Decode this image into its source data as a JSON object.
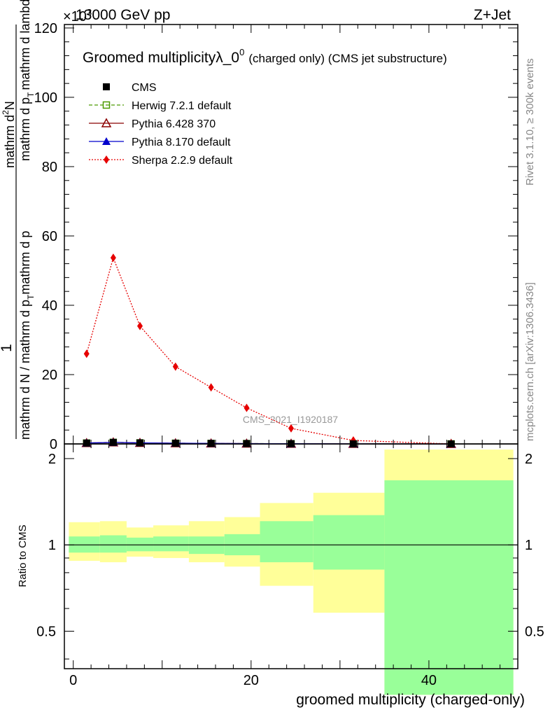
{
  "header": {
    "left": "13000 GeV pp",
    "right": "Z+Jet",
    "exponent": "×10",
    "exponent_power": "3"
  },
  "side_text": {
    "rivet": "Rivet 3.1.10, ≥ 300k events",
    "mcplots": "mcplots.cern.ch [arXiv:1306.3436]"
  },
  "chart_data": [
    {
      "type": "line",
      "title": "Groomed multiplicityλ_0",
      "title_sup": "0",
      "title_suffix": "(charged only) (CMS jet substructure)",
      "ylabel": "1 / (mathrm d N / mathrm d p_T mathrm d p_T mathrm d lambda) · mathrm d²N",
      "ylabel_parts": {
        "numerator_1": "1",
        "denominator_1": "mathrm d N / mathrm d p",
        "denominator_1_sub": "T",
        "denominator_1_b": "mathrm d p",
        "denominator_1_b_sub": "T",
        "numerator_2_a": "mathrm d",
        "numerator_2_sup": "2",
        "numerator_2_b": "N",
        "denominator_2": "mathrm d p",
        "denominator_2_sub": "T",
        "denominator_2_b": "mathrm d lambda"
      },
      "xlim": [
        -1,
        50
      ],
      "ylim": [
        0,
        121
      ],
      "yticks": [
        0,
        20,
        40,
        60,
        80,
        100,
        120
      ],
      "xticks": [
        0,
        20,
        40
      ],
      "watermark": "CMS_2021_I1920187",
      "legend": [
        {
          "name": "CMS",
          "color": "#000000",
          "marker": "square-filled",
          "line": "none"
        },
        {
          "name": "Herwig 7.2.1 default",
          "color": "#4c9a00",
          "marker": "square-open",
          "line": "dashed"
        },
        {
          "name": "Pythia 6.428 370",
          "color": "#8b0000",
          "marker": "triangle-open",
          "line": "solid"
        },
        {
          "name": "Pythia 8.170 default",
          "color": "#0000cc",
          "marker": "triangle-filled",
          "line": "solid"
        },
        {
          "name": "Sherpa 2.2.9 default",
          "color": "#e60000",
          "marker": "diamond-filled",
          "line": "dotted"
        }
      ],
      "bins": [
        {
          "lo": 0,
          "hi": 3,
          "x": 1.5
        },
        {
          "lo": 3,
          "hi": 6,
          "x": 4.5
        },
        {
          "lo": 6,
          "hi": 9,
          "x": 7.5
        },
        {
          "lo": 9,
          "hi": 13,
          "x": 11.5
        },
        {
          "lo": 13,
          "hi": 17,
          "x": 15.5
        },
        {
          "lo": 17,
          "hi": 21,
          "x": 19.5
        },
        {
          "lo": 21,
          "hi": 27,
          "x": 24.5
        },
        {
          "lo": 27,
          "hi": 35,
          "x": 31.5
        },
        {
          "lo": 35,
          "hi": 50,
          "x": 42.5
        }
      ],
      "series": [
        {
          "name": "CMS",
          "values": [
            0.25,
            0.45,
            0.3,
            0.2,
            0.15,
            0.1,
            0.06,
            0.02,
            0.004
          ]
        },
        {
          "name": "Herwig 7.2.1 default",
          "values": [
            0.25,
            0.45,
            0.3,
            0.2,
            0.15,
            0.1,
            0.06,
            0.02,
            0.004
          ]
        },
        {
          "name": "Pythia 6.428 370",
          "values": [
            0.25,
            0.45,
            0.3,
            0.2,
            0.15,
            0.1,
            0.06,
            0.02,
            0.004
          ]
        },
        {
          "name": "Pythia 8.170 default",
          "values": [
            0.25,
            0.45,
            0.3,
            0.2,
            0.15,
            0.1,
            0.06,
            0.02,
            0.004
          ]
        },
        {
          "name": "Sherpa 2.2.9 default",
          "values": [
            26,
            53.7,
            34,
            22.3,
            16.3,
            10.4,
            4.5,
            1,
            0
          ]
        }
      ]
    },
    {
      "type": "area",
      "ylabel": "Ratio to CMS",
      "xlabel": "groomed multiplicity (charged-only)",
      "xlim": [
        -1,
        50
      ],
      "ylim": [
        0.37,
        2.25
      ],
      "yticks": [
        0.5,
        1,
        2
      ],
      "ytick_labels": [
        "0.5",
        "1",
        "2"
      ],
      "xticks": [
        0,
        20,
        40
      ],
      "reference_line": 1,
      "bands": [
        {
          "lo": -0.5,
          "hi": 3,
          "inner": [
            0.94,
            1.07
          ],
          "outer": [
            0.88,
            1.2
          ]
        },
        {
          "lo": 3,
          "hi": 6,
          "inner": [
            0.94,
            1.08
          ],
          "outer": [
            0.87,
            1.21
          ]
        },
        {
          "lo": 6,
          "hi": 9,
          "inner": [
            0.95,
            1.06
          ],
          "outer": [
            0.91,
            1.15
          ]
        },
        {
          "lo": 9,
          "hi": 13,
          "inner": [
            0.95,
            1.07
          ],
          "outer": [
            0.9,
            1.17
          ]
        },
        {
          "lo": 13,
          "hi": 17,
          "inner": [
            0.93,
            1.07
          ],
          "outer": [
            0.87,
            1.21
          ]
        },
        {
          "lo": 17,
          "hi": 21,
          "inner": [
            0.92,
            1.09
          ],
          "outer": [
            0.84,
            1.25
          ]
        },
        {
          "lo": 21,
          "hi": 27,
          "inner": [
            0.87,
            1.21
          ],
          "outer": [
            0.72,
            1.4
          ]
        },
        {
          "lo": 27,
          "hi": 35,
          "inner": [
            0.82,
            1.27
          ],
          "outer": [
            0.58,
            1.52
          ]
        },
        {
          "lo": 35,
          "hi": 49.5,
          "inner": [
            0.3,
            1.68
          ],
          "outer": [
            0.3,
            2.15
          ]
        }
      ]
    }
  ]
}
